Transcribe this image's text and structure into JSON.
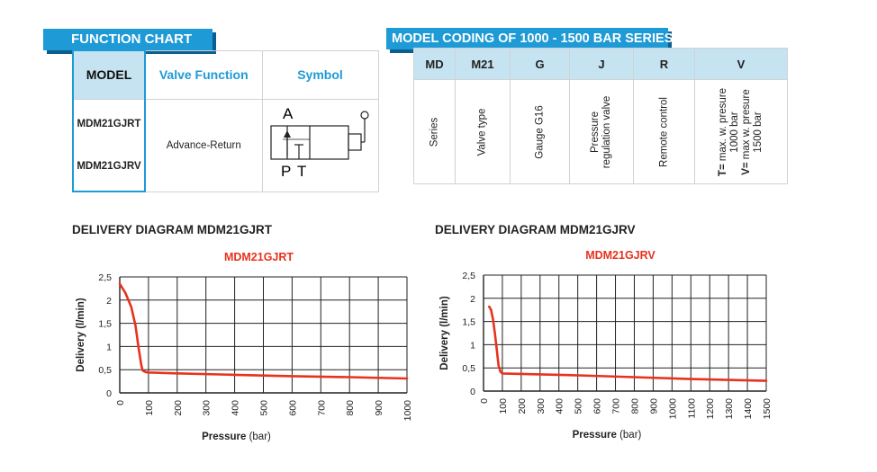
{
  "function_chart": {
    "tag": "FUNCTION CHART",
    "headers": {
      "model": "MODEL",
      "valve_function": "Valve Function",
      "symbol": "Symbol"
    },
    "models": [
      "MDM21GJRT",
      "MDM21GJRV"
    ],
    "function": "Advance-Return",
    "symbol_labels": {
      "a": "A",
      "p": "P",
      "t": "T"
    }
  },
  "model_coding": {
    "tag": "MODEL CODING OF 1000 - 1500 BAR SERIES",
    "codes": [
      "MD",
      "M21",
      "G",
      "J",
      "R",
      "V"
    ],
    "descriptions": [
      "Series",
      "Valve type",
      "Gauge G16",
      "Pressure regulation valve",
      "Remote control"
    ],
    "last_line1_prefix": "T=",
    "last_line1_text": " max. w. presure 1000 bar",
    "last_line2_prefix": "V=",
    "last_line2_text": " max w. presure 1500 bar"
  },
  "chart_data": [
    {
      "type": "line",
      "heading": "DELIVERY DIAGRAM MDM21GJRT",
      "title": "MDM21GJRT",
      "xlabel": "Pressure",
      "xunit": "(bar)",
      "ylabel": "Delivery (l/min)",
      "xlim": [
        0,
        1000
      ],
      "ylim": [
        0,
        2.5
      ],
      "xticks": [
        "0",
        "100",
        "200",
        "300",
        "400",
        "500",
        "600",
        "700",
        "800",
        "900",
        "1000"
      ],
      "yticks": [
        "0",
        "0,5",
        "1",
        "1,5",
        "2",
        "2,5"
      ],
      "grid": true,
      "color": "#e8321e",
      "series": [
        {
          "x": [
            0,
            20,
            40,
            55,
            65,
            75,
            80,
            90,
            100,
            200,
            400,
            600,
            800,
            1000
          ],
          "y": [
            2.35,
            2.15,
            1.85,
            1.45,
            1.0,
            0.6,
            0.48,
            0.45,
            0.44,
            0.42,
            0.39,
            0.36,
            0.34,
            0.31
          ]
        }
      ]
    },
    {
      "type": "line",
      "heading": "DELIVERY DIAGRAM MDM21GJRV",
      "title": "MDM21GJRV",
      "xlabel": "Pressure",
      "xunit": "(bar)",
      "ylabel": "Delivery (l/min)",
      "xlim": [
        0,
        1500
      ],
      "ylim": [
        0,
        2.5
      ],
      "xticks": [
        "0",
        "100",
        "200",
        "300",
        "400",
        "500",
        "600",
        "700",
        "800",
        "900",
        "1000",
        "1100",
        "1200",
        "1300",
        "1400",
        "1500"
      ],
      "yticks": [
        "0",
        "0,5",
        "1",
        "1,5",
        "2",
        "2,5"
      ],
      "grid": true,
      "color": "#e8321e",
      "series": [
        {
          "x": [
            30,
            40,
            50,
            60,
            70,
            80,
            90,
            100,
            200,
            500,
            800,
            1100,
            1500
          ],
          "y": [
            1.82,
            1.75,
            1.55,
            1.25,
            0.9,
            0.55,
            0.42,
            0.38,
            0.37,
            0.34,
            0.3,
            0.26,
            0.22
          ]
        }
      ]
    }
  ]
}
